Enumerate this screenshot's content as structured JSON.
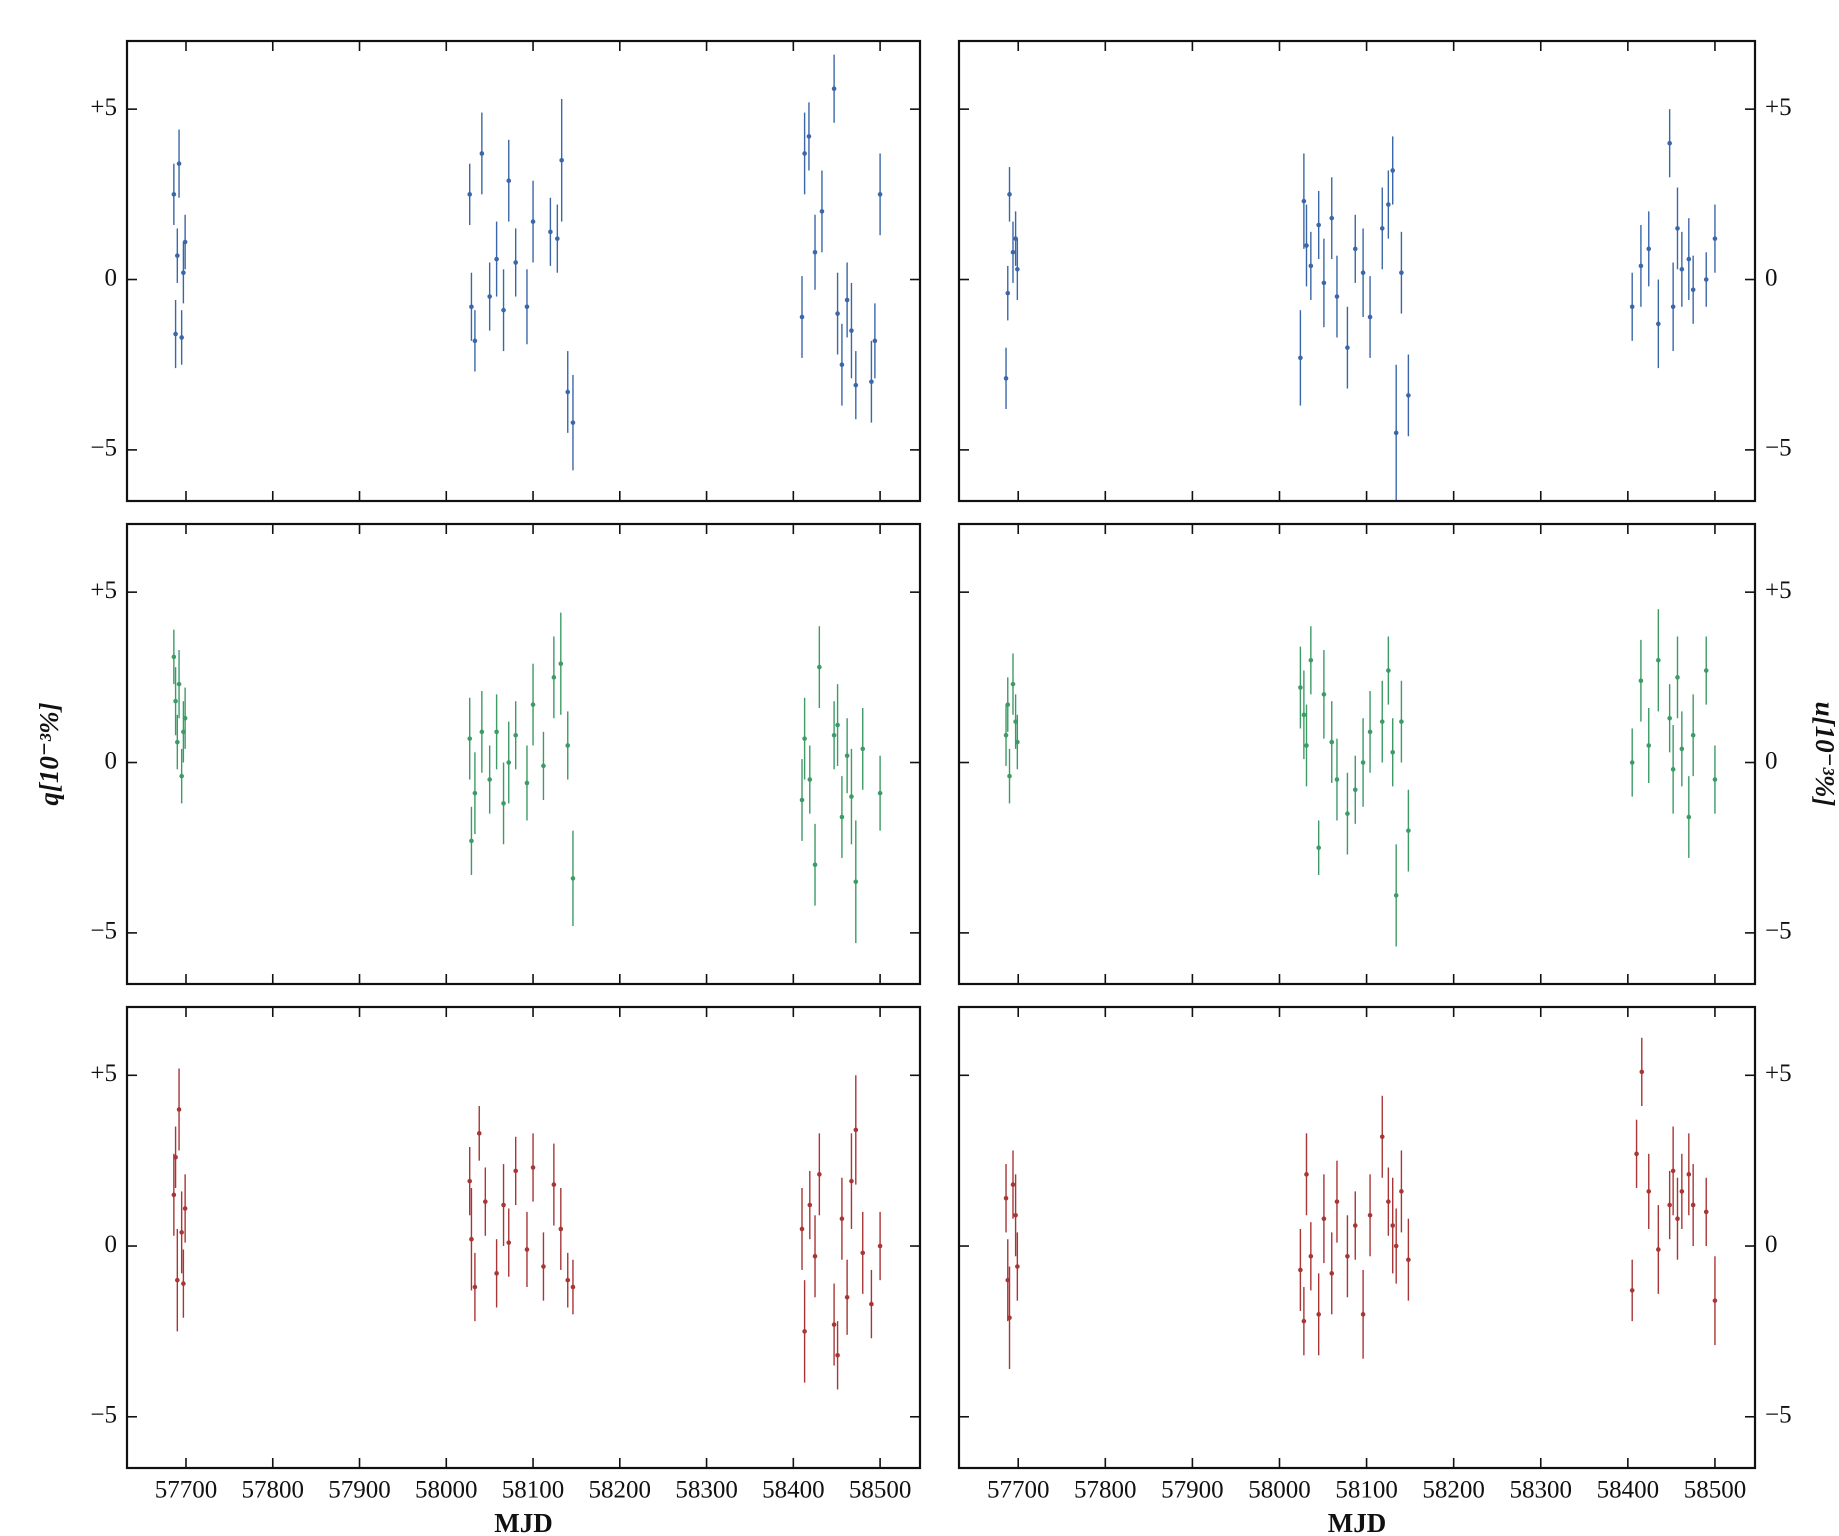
{
  "chart_data": [
    {
      "type": "errorbar",
      "color": "#3b67a8",
      "ytick_side": "left",
      "xlim": [
        57632,
        58546
      ],
      "ylim": [
        -6.5,
        7
      ],
      "xticks": [
        57700,
        57800,
        57900,
        58000,
        58100,
        58200,
        58300,
        58400,
        58500
      ],
      "yticks": [
        {
          "value": 5,
          "label": "+5"
        },
        0,
        {
          "value": -5,
          "label": "−5"
        }
      ],
      "x": [
        57686,
        57688,
        57690,
        57692,
        57695,
        57697,
        57699,
        58027,
        58029,
        58033,
        58041,
        58050,
        58058,
        58066,
        58072,
        58080,
        58093,
        58100,
        58120,
        58128,
        58133,
        58140,
        58146,
        58410,
        58413,
        58418,
        58425,
        58433,
        58447,
        58451,
        58456,
        58462,
        58467,
        58472,
        58490,
        58494,
        58500
      ],
      "values": [
        2.5,
        -1.6,
        0.7,
        3.4,
        -1.7,
        0.2,
        1.1,
        2.5,
        -0.8,
        -1.8,
        3.7,
        -0.5,
        0.6,
        -0.9,
        2.9,
        0.5,
        -0.8,
        1.7,
        1.4,
        1.2,
        3.5,
        -3.3,
        -4.2,
        -1.1,
        3.7,
        4.2,
        0.8,
        2.0,
        5.6,
        -1.0,
        -2.5,
        -0.6,
        -1.5,
        -3.1,
        -3.0,
        -1.8,
        2.5
      ],
      "errors": [
        0.9,
        1.0,
        0.8,
        1.0,
        0.8,
        0.9,
        0.8,
        0.9,
        1.0,
        0.9,
        1.2,
        1.0,
        1.1,
        1.2,
        1.2,
        1.0,
        1.1,
        1.2,
        1.0,
        1.0,
        1.8,
        1.2,
        1.4,
        1.2,
        1.2,
        1.0,
        1.1,
        1.2,
        1.0,
        1.2,
        1.2,
        1.1,
        1.4,
        1.0,
        1.2,
        1.1,
        1.2
      ]
    },
    {
      "type": "errorbar",
      "color": "#3b67a8",
      "ytick_side": "right",
      "xlim": [
        57632,
        58546
      ],
      "ylim": [
        -6.5,
        7
      ],
      "xticks": [
        57700,
        57800,
        57900,
        58000,
        58100,
        58200,
        58300,
        58400,
        58500
      ],
      "yticks": [
        {
          "value": 5,
          "label": "+5"
        },
        0,
        {
          "value": -5,
          "label": "−5"
        }
      ],
      "x": [
        57686,
        57688,
        57690,
        57694,
        57697,
        57699,
        58024,
        58028,
        58031,
        58036,
        58045,
        58051,
        58060,
        58066,
        58078,
        58087,
        58096,
        58104,
        58118,
        58125,
        58130,
        58134,
        58140,
        58148,
        58405,
        58415,
        58424,
        58435,
        58448,
        58452,
        58457,
        58462,
        58470,
        58475,
        58490,
        58500
      ],
      "values": [
        -2.9,
        -0.4,
        2.5,
        0.8,
        1.2,
        0.3,
        -2.3,
        2.3,
        1.0,
        0.4,
        1.6,
        -0.1,
        1.8,
        -0.5,
        -2.0,
        0.9,
        0.2,
        -1.1,
        1.5,
        2.2,
        3.2,
        -4.5,
        0.2,
        -3.4,
        -0.8,
        0.4,
        0.9,
        -1.3,
        4.0,
        -0.8,
        1.5,
        0.3,
        0.6,
        -0.3,
        0.0,
        1.2
      ],
      "errors": [
        0.9,
        0.8,
        0.8,
        0.9,
        0.8,
        0.9,
        1.4,
        1.4,
        1.2,
        1.0,
        1.0,
        1.3,
        1.2,
        1.2,
        1.2,
        1.0,
        1.3,
        1.2,
        1.2,
        1.0,
        1.0,
        2.0,
        1.2,
        1.2,
        1.0,
        1.2,
        1.1,
        1.3,
        1.0,
        1.3,
        1.2,
        1.1,
        1.2,
        1.0,
        0.8,
        1.0
      ]
    },
    {
      "type": "errorbar",
      "color": "#3d9b66",
      "ytick_side": "left",
      "ylabel": "q[10⁻³%]",
      "xlim": [
        57632,
        58546
      ],
      "ylim": [
        -6.5,
        7
      ],
      "xticks": [
        57700,
        57800,
        57900,
        58000,
        58100,
        58200,
        58300,
        58400,
        58500
      ],
      "yticks": [
        {
          "value": 5,
          "label": "+5"
        },
        0,
        {
          "value": -5,
          "label": "−5"
        }
      ],
      "x": [
        57686,
        57688,
        57690,
        57692,
        57695,
        57697,
        57699,
        58027,
        58029,
        58033,
        58041,
        58050,
        58058,
        58066,
        58072,
        58080,
        58093,
        58100,
        58112,
        58124,
        58132,
        58140,
        58146,
        58410,
        58413,
        58419,
        58425,
        58430,
        58447,
        58451,
        58456,
        58462,
        58467,
        58472,
        58480,
        58500
      ],
      "values": [
        3.1,
        1.8,
        0.6,
        2.3,
        -0.4,
        0.9,
        1.3,
        0.7,
        -2.3,
        -0.9,
        0.9,
        -0.5,
        0.9,
        -1.2,
        0.0,
        0.8,
        -0.6,
        1.7,
        -0.1,
        2.5,
        2.9,
        0.5,
        -3.4,
        -1.1,
        0.7,
        -0.5,
        -3.0,
        2.8,
        0.8,
        1.1,
        -1.6,
        0.2,
        -1.0,
        -3.5,
        0.4,
        -0.9
      ],
      "errors": [
        0.8,
        1.0,
        0.8,
        1.0,
        0.8,
        0.9,
        0.9,
        1.2,
        1.0,
        1.2,
        1.2,
        1.0,
        1.1,
        1.2,
        1.2,
        1.0,
        1.1,
        1.2,
        1.0,
        1.2,
        1.5,
        1.0,
        1.4,
        1.2,
        1.2,
        1.0,
        1.2,
        1.2,
        1.0,
        1.2,
        1.2,
        1.1,
        1.4,
        1.8,
        1.2,
        1.1
      ]
    },
    {
      "type": "errorbar",
      "color": "#3d9b66",
      "ytick_side": "right",
      "ylabel": "u[10⁻³%]",
      "xlim": [
        57632,
        58546
      ],
      "ylim": [
        -6.5,
        7
      ],
      "xticks": [
        57700,
        57800,
        57900,
        58000,
        58100,
        58200,
        58300,
        58400,
        58500
      ],
      "yticks": [
        {
          "value": 5,
          "label": "+5"
        },
        0,
        {
          "value": -5,
          "label": "−5"
        }
      ],
      "x": [
        57686,
        57688,
        57690,
        57694,
        57697,
        57699,
        58024,
        58028,
        58031,
        58036,
        58045,
        58051,
        58060,
        58066,
        58078,
        58087,
        58096,
        58104,
        58118,
        58125,
        58130,
        58134,
        58140,
        58148,
        58405,
        58415,
        58424,
        58435,
        58448,
        58452,
        58457,
        58462,
        58470,
        58475,
        58490,
        58500
      ],
      "values": [
        0.8,
        1.7,
        -0.4,
        2.3,
        1.2,
        0.6,
        2.2,
        1.4,
        0.5,
        3.0,
        -2.5,
        2.0,
        0.6,
        -0.5,
        -1.5,
        -0.8,
        0.0,
        0.9,
        1.2,
        2.7,
        0.3,
        -3.9,
        1.2,
        -2.0,
        0.0,
        2.4,
        0.5,
        3.0,
        1.3,
        -0.2,
        2.5,
        0.4,
        -1.6,
        0.8,
        2.7,
        -0.5
      ],
      "errors": [
        0.9,
        0.8,
        0.8,
        0.9,
        0.8,
        0.8,
        1.2,
        1.3,
        1.2,
        1.0,
        0.8,
        1.3,
        1.2,
        1.2,
        1.2,
        1.0,
        1.3,
        1.2,
        1.2,
        1.0,
        1.0,
        1.5,
        1.2,
        1.2,
        1.0,
        1.2,
        1.1,
        1.5,
        1.0,
        1.3,
        1.2,
        1.1,
        1.2,
        1.2,
        1.0,
        1.0
      ]
    },
    {
      "type": "errorbar",
      "color": "#a83636",
      "ytick_side": "left",
      "xlabel": "MJD",
      "show_xtick_labels": true,
      "xlim": [
        57632,
        58546
      ],
      "ylim": [
        -6.5,
        7
      ],
      "xticks": [
        57700,
        57800,
        57900,
        58000,
        58100,
        58200,
        58300,
        58400,
        58500
      ],
      "yticks": [
        {
          "value": 5,
          "label": "+5"
        },
        0,
        {
          "value": -5,
          "label": "−5"
        }
      ],
      "x": [
        57686,
        57688,
        57690,
        57692,
        57695,
        57697,
        57699,
        58027,
        58029,
        58033,
        58038,
        58045,
        58058,
        58066,
        58072,
        58080,
        58093,
        58100,
        58112,
        58124,
        58132,
        58140,
        58146,
        58410,
        58413,
        58419,
        58425,
        58430,
        58447,
        58451,
        58456,
        58462,
        58467,
        58472,
        58480,
        58490,
        58500
      ],
      "values": [
        1.5,
        2.6,
        -1.0,
        4.0,
        0.4,
        -1.1,
        1.1,
        1.9,
        0.2,
        -1.2,
        3.3,
        1.3,
        -0.8,
        1.2,
        0.1,
        2.2,
        -0.1,
        2.3,
        -0.6,
        1.8,
        0.5,
        -1.0,
        -1.2,
        0.5,
        -2.5,
        1.2,
        -0.3,
        2.1,
        -2.3,
        -3.2,
        0.8,
        -1.5,
        1.9,
        3.4,
        -0.2,
        -1.7,
        0.0
      ],
      "errors": [
        1.2,
        0.9,
        1.5,
        1.2,
        1.2,
        1.0,
        1.0,
        1.0,
        1.5,
        1.0,
        0.8,
        1.0,
        1.0,
        1.2,
        1.0,
        1.0,
        1.1,
        1.0,
        1.0,
        1.2,
        1.2,
        0.8,
        0.8,
        1.2,
        1.5,
        1.0,
        1.2,
        1.2,
        1.2,
        1.0,
        1.2,
        1.1,
        1.4,
        1.6,
        1.2,
        1.0,
        1.0
      ]
    },
    {
      "type": "errorbar",
      "color": "#a83636",
      "ytick_side": "right",
      "xlabel": "MJD",
      "show_xtick_labels": true,
      "xlim": [
        57632,
        58546
      ],
      "ylim": [
        -6.5,
        7
      ],
      "xticks": [
        57700,
        57800,
        57900,
        58000,
        58100,
        58200,
        58300,
        58400,
        58500
      ],
      "yticks": [
        {
          "value": 5,
          "label": "+5"
        },
        0,
        {
          "value": -5,
          "label": "−5"
        }
      ],
      "x": [
        57686,
        57688,
        57690,
        57694,
        57697,
        57699,
        58024,
        58028,
        58031,
        58036,
        58045,
        58051,
        58060,
        58066,
        58078,
        58087,
        58096,
        58104,
        58118,
        58125,
        58130,
        58134,
        58140,
        58148,
        58405,
        58410,
        58416,
        58424,
        58435,
        58448,
        58452,
        58457,
        58462,
        58470,
        58475,
        58490,
        58500
      ],
      "values": [
        1.4,
        -1.0,
        -2.1,
        1.8,
        0.9,
        -0.6,
        -0.7,
        -2.2,
        2.1,
        -0.3,
        -2.0,
        0.8,
        -0.8,
        1.3,
        -0.3,
        0.6,
        -2.0,
        0.9,
        3.2,
        1.3,
        0.6,
        0.0,
        1.6,
        -0.4,
        -1.3,
        2.7,
        5.1,
        1.6,
        -0.1,
        1.2,
        2.2,
        0.8,
        1.6,
        2.1,
        1.2,
        1.0,
        -1.6
      ],
      "errors": [
        1.0,
        1.2,
        1.5,
        1.0,
        1.2,
        1.0,
        1.2,
        1.0,
        1.2,
        1.0,
        1.2,
        1.3,
        1.2,
        1.2,
        1.2,
        1.0,
        1.3,
        1.2,
        1.2,
        1.0,
        1.4,
        1.1,
        1.2,
        1.2,
        0.9,
        1.0,
        1.0,
        1.1,
        1.3,
        1.0,
        1.3,
        1.2,
        1.1,
        1.2,
        1.2,
        1.0,
        1.3
      ]
    }
  ]
}
